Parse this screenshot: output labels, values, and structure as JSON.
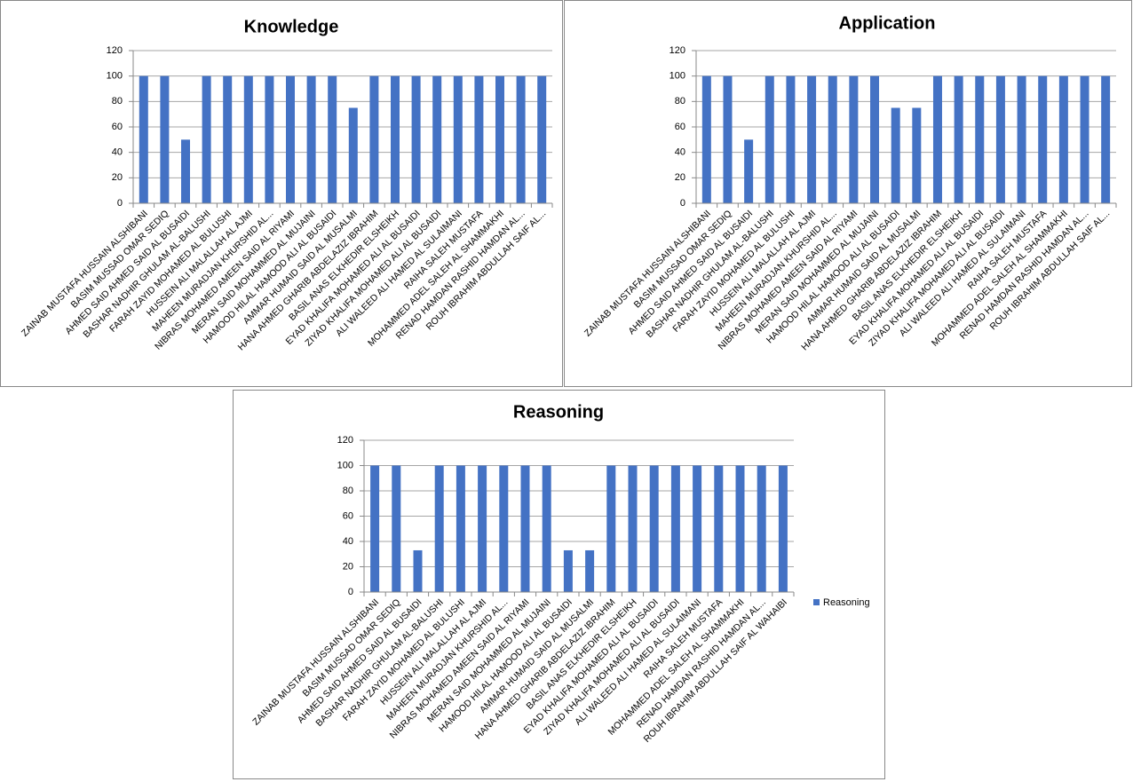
{
  "chart_data": [
    {
      "type": "bar",
      "title": "Knowledge",
      "categories": [
        "ZAINAB MUSTAFA HUSSAIN ALSHIBANI",
        "BASIM MUSSAD OMAR SEDIQ",
        "AHMED SAID AHMED  SAID AL BUSAIDI",
        "BASHAR NADHIR GHULAM AL-BALUSHI",
        "FARAH ZAYID MOHAMED AL BULUSHI",
        "HUSSEIN ALI MALALLAH AL AJMI",
        "MAHEEN MURADJAN KHURSHID  AL...",
        "NIBRAS MOHAMED AMEEN SAID AL RIYAMI",
        "MERAN SAID MOHAMMED AL MUJAINI",
        "HAMOOD HILAL HAMOOD ALI AL BUSAIDI",
        "AMMAR HUMAID SAID AL MUSALMI",
        "HANA AHMED GHARIB ABDELAZIZ IBRAHIM",
        "BASIL ANAS ELKHEDIR ELSHEIKH",
        "EYAD KHALIFA MOHAMED ALI AL BUSAIDI",
        "ZIYAD KHALIFA MOHAMED ALI AL BUSAIDI",
        "ALI WALEED ALI HAMED  AL SULAIMANI",
        "RAIHA SALEH MUSTAFA",
        "MOHAMMED ADEL SALEH AL SHAMMAKHI",
        "RENAD HAMDAN RASHID HAMDAN AL...",
        "ROUH IBRAHIM ABDULLAH SAIF AL..."
      ],
      "values": [
        100,
        100,
        50,
        100,
        100,
        100,
        100,
        100,
        100,
        100,
        75,
        100,
        100,
        100,
        100,
        100,
        100,
        100,
        100,
        100
      ],
      "color": "#4472c4",
      "ylim": [
        0,
        120
      ],
      "yticks": [
        0,
        20,
        40,
        60,
        80,
        100,
        120
      ],
      "grid": true
    },
    {
      "type": "bar",
      "title": "Application",
      "categories": [
        "ZAINAB MUSTAFA HUSSAIN ALSHIBANI",
        "BASIM MUSSAD OMAR SEDIQ",
        "AHMED SAID AHMED  SAID AL BUSAIDI",
        "BASHAR NADHIR GHULAM AL-BALUSHI",
        "FARAH ZAYID MOHAMED AL BULUSHI",
        "HUSSEIN ALI MALALLAH AL AJMI",
        "MAHEEN MURADJAN KHURSHID  AL...",
        "NIBRAS MOHAMED AMEEN SAID AL RIYAMI",
        "MERAN SAID MOHAMMED AL MUJAINI",
        "HAMOOD HILAL HAMOOD ALI AL BUSAIDI",
        "AMMAR HUMAID SAID AL MUSALMI",
        "HANA AHMED GHARIB ABDELAZIZ IBRAHIM",
        "BASIL ANAS ELKHEDIR ELSHEIKH",
        "EYAD KHALIFA MOHAMED ALI AL BUSAIDI",
        "ZIYAD KHALIFA MOHAMED ALI AL BUSAIDI",
        "ALI WALEED ALI HAMED  AL SULAIMANI",
        "RAIHA SALEH MUSTAFA",
        "MOHAMMED ADEL SALEH AL SHAMMAKHI",
        "RENAD HAMDAN RASHID HAMDAN AL...",
        "ROUH IBRAHIM ABDULLAH SAIF AL..."
      ],
      "values": [
        100,
        100,
        50,
        100,
        100,
        100,
        100,
        100,
        100,
        75,
        75,
        100,
        100,
        100,
        100,
        100,
        100,
        100,
        100,
        100
      ],
      "color": "#4472c4",
      "ylim": [
        0,
        120
      ],
      "yticks": [
        0,
        20,
        40,
        60,
        80,
        100,
        120
      ],
      "grid": true
    },
    {
      "type": "bar",
      "title": "Reasoning",
      "categories": [
        "ZAINAB MUSTAFA HUSSAIN ALSHIBANI",
        "BASIM MUSSAD OMAR SEDIQ",
        "AHMED SAID AHMED  SAID AL BUSAIDI",
        "BASHAR NADHIR GHULAM AL-BALUSHI",
        "FARAH ZAYID MOHAMED AL BULUSHI",
        "HUSSEIN ALI MALALLAH AL AJMI",
        "MAHEEN MURADJAN KHURSHID  AL...",
        "NIBRAS MOHAMED AMEEN SAID AL RIYAMI",
        "MERAN SAID MOHAMMED AL MUJAINI",
        "HAMOOD HILAL HAMOOD ALI AL BUSAIDI",
        "AMMAR HUMAID SAID AL MUSALMI",
        "HANA AHMED GHARIB ABDELAZIZ IBRAHIM",
        "BASIL ANAS ELKHEDIR ELSHEIKH",
        "EYAD KHALIFA MOHAMED ALI AL BUSAIDI",
        "ZIYAD KHALIFA MOHAMED ALI AL BUSAIDI",
        "ALI WALEED ALI HAMED  AL SULAIMANI",
        "RAIHA SALEH MUSTAFA",
        "MOHAMMED ADEL SALEH AL SHAMMAKHI",
        "RENAD HAMDAN RASHID HAMDAN AL...",
        "ROUH IBRAHIM ABDULLAH SAIF AL WAHAIBI"
      ],
      "series": [
        {
          "name": "Reasoning",
          "color": "#4472c4",
          "values": [
            100,
            100,
            33,
            100,
            100,
            100,
            100,
            100,
            100,
            33,
            33,
            100,
            100,
            100,
            100,
            100,
            100,
            100,
            100,
            100
          ]
        }
      ],
      "ylim": [
        0,
        120
      ],
      "yticks": [
        0,
        20,
        40,
        60,
        80,
        100,
        120
      ],
      "grid": true,
      "legend": "right"
    }
  ]
}
